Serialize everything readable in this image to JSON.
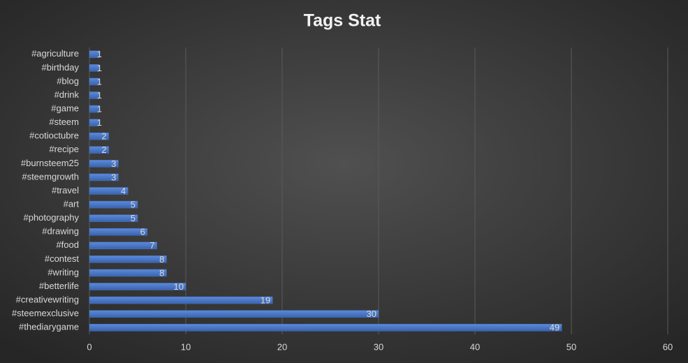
{
  "chart_data": {
    "type": "bar",
    "orientation": "horizontal",
    "title": "Tags Stat",
    "categories": [
      "#agriculture",
      "#birthday",
      "#blog",
      "#drink",
      "#game",
      "#steem",
      "#cotioctubre",
      "#recipe",
      "#burnsteem25",
      "#steemgrowth",
      "#travel",
      "#art",
      "#photography",
      "#drawing",
      "#food",
      "#contest",
      "#writing",
      "#betterlife",
      "#creativewriting",
      "#steemexclusive",
      "#thediarygame"
    ],
    "values": [
      1,
      1,
      1,
      1,
      1,
      1,
      2,
      2,
      3,
      3,
      4,
      5,
      5,
      6,
      7,
      8,
      8,
      10,
      19,
      30,
      49
    ],
    "color": "#4472c4",
    "xlim": [
      0,
      60
    ],
    "xticks": [
      0,
      10,
      20,
      30,
      40,
      50,
      60
    ],
    "grid": true,
    "data_labels": true
  }
}
